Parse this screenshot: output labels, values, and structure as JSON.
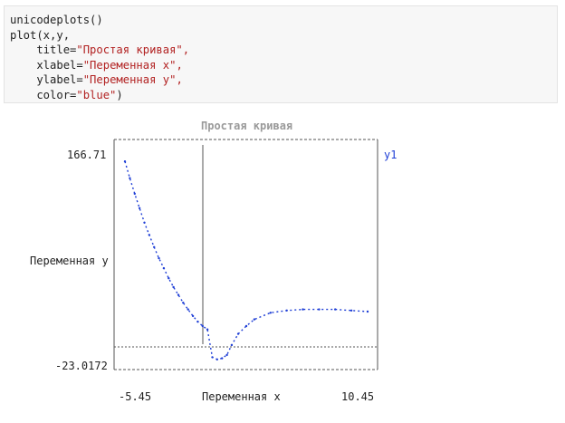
{
  "code": {
    "line1": "unicodeplots()",
    "line2": "plot(x,y,",
    "title_prefix": "    title=",
    "title_value": "\"Простая кривая\",",
    "xlabel_prefix": "    xlabel=",
    "xlabel_value": "\"Переменная x\",",
    "ylabel_prefix": "    ylabel=",
    "ylabel_value": "\"Переменная y\",",
    "color_prefix": "    color=",
    "color_value": "\"blue\"",
    "color_suffix": ")"
  },
  "chart_data": {
    "type": "line",
    "title": "Простая кривая",
    "xlabel": "Переменная x",
    "ylabel": "Переменная y",
    "xlim": [
      -5.45,
      10.45
    ],
    "ylim": [
      -23.0172,
      166.71
    ],
    "x_tick_labels": [
      "-5.45",
      "10.45"
    ],
    "y_tick_labels": [
      "166.71",
      "-23.0172"
    ],
    "series": [
      {
        "name": "y1",
        "color": "#1f3fd6",
        "x": [
          -5,
          -4.7,
          -4.4,
          -4.1,
          -3.8,
          -3.5,
          -3.2,
          -2.9,
          -2.6,
          -2.3,
          -2.0,
          -1.7,
          -1.4,
          -1.1,
          -0.8,
          -0.5,
          -0.2,
          0.1,
          0.4,
          0.7,
          1.0,
          1.3,
          1.6,
          2.0,
          2.5,
          3,
          4,
          5,
          6,
          7,
          8,
          9,
          10
        ],
        "y": [
          160,
          145,
          131,
          118,
          105,
          94,
          83,
          73,
          64,
          55,
          47,
          40,
          33,
          27,
          21,
          16,
          12,
          9,
          -16,
          -18,
          -17,
          -14,
          -5,
          5,
          12,
          18,
          24,
          26,
          27,
          27,
          27,
          26,
          25
        ]
      }
    ],
    "grid": false,
    "legend": "right"
  }
}
